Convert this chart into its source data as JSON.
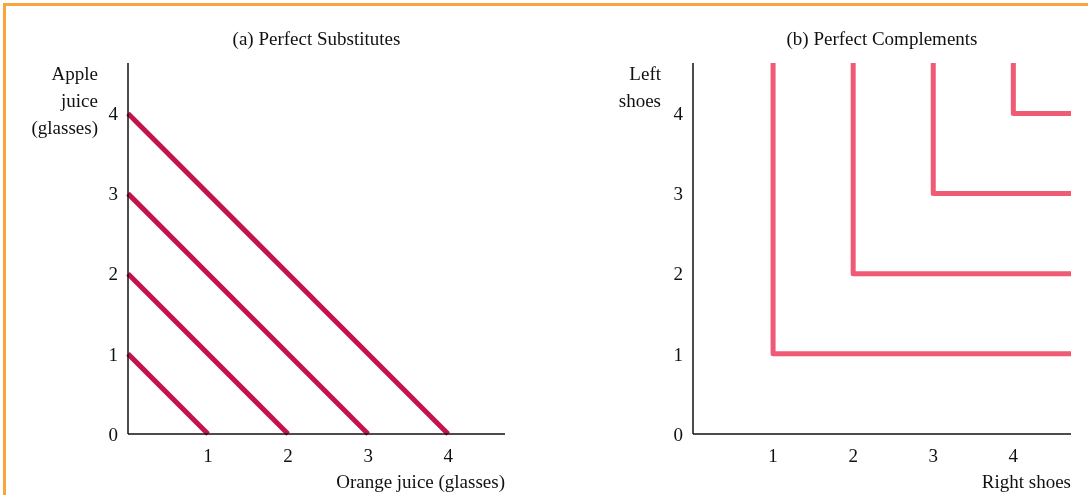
{
  "chart_data": [
    {
      "type": "line",
      "title": "(a) Perfect Substitutes",
      "xlabel": "Orange juice  (glasses)",
      "ylabel": "Apple juice (glasses)",
      "xlim": [
        0,
        4.71
      ],
      "ylim": [
        0,
        4.63
      ],
      "xticks": [
        1,
        2,
        3,
        4
      ],
      "yticks": [
        0,
        1,
        2,
        3,
        4
      ],
      "grid": false,
      "marker": "none",
      "line_style": "solid",
      "series": [
        {
          "color": "#c4124c",
          "x": [
            0,
            1
          ],
          "values": [
            1,
            0
          ]
        },
        {
          "color": "#c4124c",
          "x": [
            0,
            2
          ],
          "values": [
            2,
            0
          ]
        },
        {
          "color": "#c4124c",
          "x": [
            0,
            3
          ],
          "values": [
            3,
            0
          ]
        },
        {
          "color": "#c4124c",
          "x": [
            0,
            4
          ],
          "values": [
            4,
            0
          ]
        }
      ]
    },
    {
      "type": "line",
      "title": "(b) Perfect Complements",
      "xlabel": "Right shoes",
      "ylabel": "Left shoes",
      "xlim": [
        0,
        4.72
      ],
      "ylim": [
        0,
        4.63
      ],
      "xticks": [
        1,
        2,
        3,
        4
      ],
      "yticks": [
        0,
        1,
        2,
        3,
        4
      ],
      "grid": false,
      "marker": "none",
      "line_style": "solid",
      "series": [
        {
          "color": "#ef5a75",
          "x": [
            1,
            1,
            4.72
          ],
          "values": [
            4.63,
            1,
            1
          ]
        },
        {
          "color": "#ef5a75",
          "x": [
            2,
            2,
            4.72
          ],
          "values": [
            4.63,
            2,
            2
          ]
        },
        {
          "color": "#ef5a75",
          "x": [
            3,
            3,
            4.72
          ],
          "values": [
            4.63,
            3,
            3
          ]
        },
        {
          "color": "#ef5a75",
          "x": [
            4,
            4,
            4.72
          ],
          "values": [
            4.63,
            4,
            4
          ]
        }
      ]
    }
  ]
}
